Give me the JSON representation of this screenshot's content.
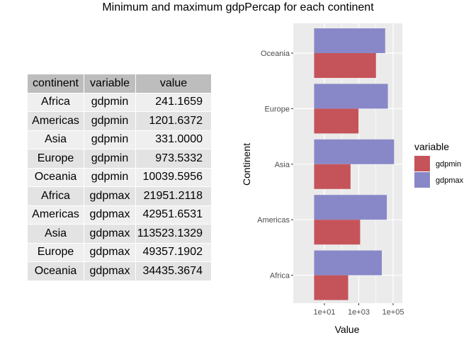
{
  "title": "Minimum and maximum gdpPercap for each continent",
  "table": {
    "headers": [
      "continent",
      "variable",
      "value"
    ],
    "rows": [
      [
        "Africa",
        "gdpmin",
        "241.1659"
      ],
      [
        "Americas",
        "gdpmin",
        "1201.6372"
      ],
      [
        "Asia",
        "gdpmin",
        "331.0000"
      ],
      [
        "Europe",
        "gdpmin",
        "973.5332"
      ],
      [
        "Oceania",
        "gdpmin",
        "10039.5956"
      ],
      [
        "Africa",
        "gdpmax",
        "21951.2118"
      ],
      [
        "Americas",
        "gdpmax",
        "42951.6531"
      ],
      [
        "Asia",
        "gdpmax",
        "113523.1329"
      ],
      [
        "Europe",
        "gdpmax",
        "49357.1902"
      ],
      [
        "Oceania",
        "gdpmax",
        "34435.3674"
      ]
    ]
  },
  "colors": {
    "gdpmin": "#c5545a",
    "gdpmax": "#8888c8",
    "panel": "#ebebeb",
    "grid": "#ffffff"
  },
  "chart_data": {
    "type": "bar",
    "orientation": "horizontal",
    "categories": [
      "Africa",
      "Americas",
      "Asia",
      "Europe",
      "Oceania"
    ],
    "series": [
      {
        "name": "gdpmin",
        "values": [
          241.1659,
          1201.6372,
          331.0,
          973.5332,
          10039.5956
        ]
      },
      {
        "name": "gdpmax",
        "values": [
          21951.2118,
          42951.6531,
          113523.1329,
          49357.1902,
          34435.3674
        ]
      }
    ],
    "xlabel": "Value",
    "ylabel": "Continent",
    "x_scale": "log10",
    "x_ticks": [
      "1e+01",
      "1e+03",
      "1e+05"
    ],
    "legend_title": "variable",
    "legend_position": "right",
    "grid": true
  }
}
